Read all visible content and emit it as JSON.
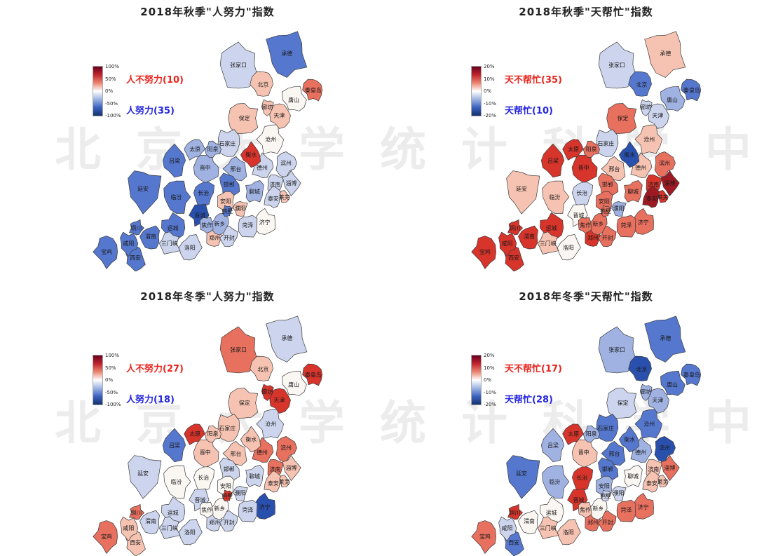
{
  "page": {
    "background": "#ffffff"
  },
  "watermark": {
    "text": "北京大学统计科学中",
    "color": "#ececec"
  },
  "chart_data": {
    "type": "heatmap",
    "subtype": "choropleth-map-grid",
    "description": "2x2 grid of choropleth maps of the Beijing-Tianjin-Hebei and Fenwei Plain city cluster, showing 2018 autumn/winter air-quality attribution indices (人努力 human-effort index, 天帮忙 weather-help index). Red = positive (bad), blue = negative (good).",
    "colorbar_stops": [
      "#67001f",
      "#c0242b",
      "#ea8570",
      "#ffffff",
      "#9db4e2",
      "#3b62c0",
      "#14316b"
    ],
    "palette": {
      "-4": "#2a50ae",
      "-3": "#5577cd",
      "-2": "#9fb2e2",
      "-1": "#ccd5ed",
      "0": "#faf6f2",
      "1": "#f6c3b2",
      "2": "#e8705f",
      "3": "#d7342b",
      "4": "#9e1a22"
    },
    "level_note": "Levels -4..4 read from region fill colors; +/-4 corresponds to +/-100% on the effort maps and +/-20% on the weather maps.",
    "region_stroke": "#3a3a3a",
    "cities": [
      {
        "name": "北京",
        "lon": 116.4,
        "lat": 40.25,
        "size": 0.62
      },
      {
        "name": "天津",
        "lon": 117.35,
        "lat": 39.15,
        "size": 0.55
      },
      {
        "name": "石家庄",
        "lon": 114.3,
        "lat": 38.15,
        "size": 0.62
      },
      {
        "name": "唐山",
        "lon": 118.2,
        "lat": 39.7,
        "size": 0.6
      },
      {
        "name": "秦皇岛",
        "lon": 119.35,
        "lat": 40.05,
        "size": 0.5
      },
      {
        "name": "邯郸",
        "lon": 114.4,
        "lat": 36.7,
        "size": 0.55
      },
      {
        "name": "邢台",
        "lon": 114.8,
        "lat": 37.25,
        "size": 0.58
      },
      {
        "name": "保定",
        "lon": 115.3,
        "lat": 39.05,
        "size": 0.75
      },
      {
        "name": "张家口",
        "lon": 114.95,
        "lat": 40.95,
        "size": 1.05
      },
      {
        "name": "承德",
        "lon": 117.8,
        "lat": 41.35,
        "size": 1.15
      },
      {
        "name": "沧州",
        "lon": 116.85,
        "lat": 38.3,
        "size": 0.65
      },
      {
        "name": "廊坊",
        "lon": 116.65,
        "lat": 39.45,
        "size": 0.34
      },
      {
        "name": "衡水",
        "lon": 115.7,
        "lat": 37.75,
        "size": 0.5
      },
      {
        "name": "太原",
        "lon": 112.4,
        "lat": 37.95,
        "size": 0.5
      },
      {
        "name": "阳泉",
        "lon": 113.45,
        "lat": 37.95,
        "size": 0.38
      },
      {
        "name": "长治",
        "lon": 112.9,
        "lat": 36.4,
        "size": 0.58
      },
      {
        "name": "晋城",
        "lon": 112.7,
        "lat": 35.6,
        "size": 0.5
      },
      {
        "name": "晋中",
        "lon": 113.0,
        "lat": 37.3,
        "size": 0.68
      },
      {
        "name": "临汾",
        "lon": 111.3,
        "lat": 36.25,
        "size": 0.72
      },
      {
        "name": "运城",
        "lon": 111.1,
        "lat": 35.15,
        "size": 0.6
      },
      {
        "name": "吕梁",
        "lon": 111.2,
        "lat": 37.55,
        "size": 0.7
      },
      {
        "name": "延安",
        "lon": 109.35,
        "lat": 36.55,
        "size": 1.0
      },
      {
        "name": "西安",
        "lon": 108.9,
        "lat": 34.1,
        "size": 0.55
      },
      {
        "name": "铜川",
        "lon": 108.95,
        "lat": 35.15,
        "size": 0.36
      },
      {
        "name": "宝鸡",
        "lon": 107.2,
        "lat": 34.3,
        "size": 0.65
      },
      {
        "name": "咸阳",
        "lon": 108.5,
        "lat": 34.6,
        "size": 0.5
      },
      {
        "name": "渭南",
        "lon": 109.8,
        "lat": 34.85,
        "size": 0.55
      },
      {
        "name": "郑州",
        "lon": 113.55,
        "lat": 34.8,
        "size": 0.45
      },
      {
        "name": "开封",
        "lon": 114.4,
        "lat": 34.8,
        "size": 0.45
      },
      {
        "name": "洛阳",
        "lon": 112.1,
        "lat": 34.45,
        "size": 0.6
      },
      {
        "name": "安阳",
        "lon": 114.2,
        "lat": 36.1,
        "size": 0.45
      },
      {
        "name": "鹤壁",
        "lon": 114.3,
        "lat": 35.75,
        "size": 0.25
      },
      {
        "name": "新乡",
        "lon": 113.85,
        "lat": 35.3,
        "size": 0.45
      },
      {
        "name": "焦作",
        "lon": 113.1,
        "lat": 35.25,
        "size": 0.36
      },
      {
        "name": "濮阳",
        "lon": 115.05,
        "lat": 35.85,
        "size": 0.4
      },
      {
        "name": "三门峡",
        "lon": 110.9,
        "lat": 34.6,
        "size": 0.55
      },
      {
        "name": "济南",
        "lon": 117.1,
        "lat": 36.7,
        "size": 0.5
      },
      {
        "name": "淄博",
        "lon": 118.05,
        "lat": 36.75,
        "size": 0.5
      },
      {
        "name": "济宁",
        "lon": 116.5,
        "lat": 35.35,
        "size": 0.55
      },
      {
        "name": "泰安",
        "lon": 117.0,
        "lat": 36.2,
        "size": 0.48
      },
      {
        "name": "莱芜",
        "lon": 117.65,
        "lat": 36.25,
        "size": 0.26
      },
      {
        "name": "德州",
        "lon": 116.35,
        "lat": 37.3,
        "size": 0.55
      },
      {
        "name": "聊城",
        "lon": 115.9,
        "lat": 36.45,
        "size": 0.48
      },
      {
        "name": "滨州",
        "lon": 117.75,
        "lat": 37.45,
        "size": 0.55
      },
      {
        "name": "菏泽",
        "lon": 115.5,
        "lat": 35.25,
        "size": 0.52
      }
    ],
    "maps": [
      {
        "id": "autumn-effort",
        "title": "2018年秋季\"人努力\"指数",
        "colorbar_ticks": [
          "100%",
          "50%",
          "0%",
          "-50%",
          "-100%"
        ],
        "pos_label": "人不努力(10)",
        "neg_label": "人努力(35)",
        "pos_label_color": "#e8241c",
        "neg_label_color": "#2526e0",
        "levels": [
          1,
          1,
          -1,
          0,
          2,
          -3,
          -2,
          1,
          -1,
          -3,
          0,
          1,
          3,
          -2,
          -2,
          -3,
          -4,
          -2,
          -3,
          -3,
          -3,
          -3,
          -3,
          -3,
          -3,
          -3,
          -3,
          1,
          -1,
          -1,
          1,
          -3,
          -2,
          -2,
          1,
          -1,
          -1,
          -1,
          0,
          -1,
          1,
          -1,
          -2,
          -1,
          -1
        ]
      },
      {
        "id": "autumn-weather",
        "title": "2018年秋季\"天帮忙\"指数",
        "colorbar_ticks": [
          "20%",
          "10%",
          "0%",
          "-10%",
          "-20%"
        ],
        "pos_label": "天不帮忙(35)",
        "neg_label": "天帮忙(10)",
        "pos_label_color": "#e8241c",
        "neg_label_color": "#2526e0",
        "levels": [
          -3,
          -1,
          -1,
          -2,
          -3,
          2,
          1,
          2,
          -1,
          1,
          1,
          -1,
          -4,
          3,
          2,
          -1,
          0,
          3,
          1,
          3,
          3,
          1,
          3,
          3,
          3,
          3,
          3,
          3,
          2,
          0,
          2,
          2,
          2,
          2,
          -2,
          1,
          3,
          4,
          2,
          4,
          3,
          1,
          2,
          2,
          2
        ]
      },
      {
        "id": "winter-effort",
        "title": "2018年冬季\"人努力\"指数",
        "colorbar_ticks": [
          "100%",
          "50%",
          "0%",
          "-50%",
          "-100%"
        ],
        "pos_label": "人不努力(27)",
        "neg_label": "人努力(18)",
        "pos_label_color": "#e8241c",
        "neg_label_color": "#2526e0",
        "levels": [
          1,
          3,
          1,
          0,
          3,
          -1,
          1,
          1,
          2,
          -1,
          -1,
          3,
          1,
          3,
          1,
          0,
          -1,
          1,
          0,
          -1,
          -3,
          -1,
          1,
          2,
          2,
          1,
          -1,
          -1,
          -1,
          -1,
          0,
          3,
          0,
          0,
          -1,
          -1,
          2,
          1,
          -4,
          1,
          1,
          2,
          -1,
          2,
          -1
        ]
      },
      {
        "id": "winter-weather",
        "title": "2018年冬季\"天帮忙\"指数",
        "colorbar_ticks": [
          "20%",
          "10%",
          "0%",
          "-10%",
          "-20%"
        ],
        "pos_label": "天不帮忙(17)",
        "neg_label": "天帮忙(28)",
        "pos_label_color": "#e8241c",
        "neg_label_color": "#2526e0",
        "levels": [
          -4,
          -2,
          -3,
          -3,
          -3,
          -3,
          -3,
          -1,
          -2,
          -3,
          -3,
          -2,
          -3,
          3,
          -2,
          3,
          3,
          1,
          -2,
          0,
          -2,
          -3,
          -3,
          3,
          2,
          -1,
          0,
          2,
          2,
          1,
          -2,
          -1,
          0,
          1,
          -1,
          1,
          1,
          2,
          2,
          1,
          1,
          -2,
          0,
          -4,
          2
        ]
      }
    ]
  }
}
